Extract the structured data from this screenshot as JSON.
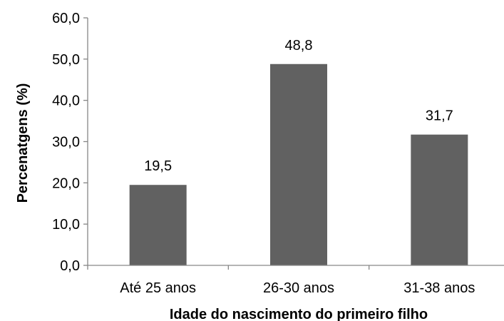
{
  "chart_data": {
    "type": "bar",
    "categories": [
      "Até 25 anos",
      "26-30 anos",
      "31-38 anos"
    ],
    "values": [
      19.5,
      48.8,
      31.7
    ],
    "value_labels": [
      "19,5",
      "48,8",
      "31,7"
    ],
    "xlabel": "Idade do nascimento do primeiro filho",
    "ylabel": "Percenatgens (%)",
    "ylim": [
      0,
      60
    ],
    "yticks": [
      0,
      10,
      20,
      30,
      40,
      50,
      60
    ],
    "ytick_labels": [
      "0,0",
      "10,0",
      "20,0",
      "30,0",
      "40,0",
      "50,0",
      "60,0"
    ],
    "grid": false,
    "legend": "none",
    "bar_color": "#616161",
    "axis_color": "#868686"
  }
}
